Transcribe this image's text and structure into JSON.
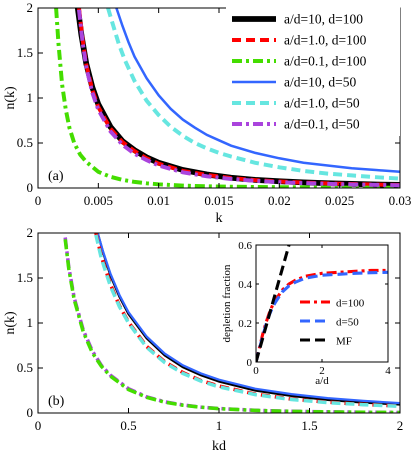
{
  "chart_data": [
    {
      "type": "line",
      "panel_label": "(a)",
      "xlabel": "k",
      "ylabel": "n(k)",
      "xlim": [
        0,
        0.03
      ],
      "ylim": [
        0,
        2
      ],
      "xticks": [
        "0",
        "0.005",
        "0.01",
        "0.015",
        "0.02",
        "0.025",
        "0.03"
      ],
      "xtick_values": [
        0,
        0.005,
        0.01,
        0.015,
        0.02,
        0.025,
        0.03
      ],
      "yticks": [
        "0",
        "0.5",
        "1",
        "1.5",
        "2"
      ],
      "ytick_values": [
        0,
        0.5,
        1,
        1.5,
        2
      ],
      "legend_position": "top-right",
      "series": [
        {
          "name": "a/d=10, d=100",
          "color": "#000000",
          "style": "solid-thick",
          "x": [
            0.0033,
            0.0036,
            0.004,
            0.0045,
            0.005,
            0.006,
            0.007,
            0.008,
            0.009,
            0.01,
            0.012,
            0.014,
            0.016,
            0.018,
            0.02,
            0.022,
            0.024,
            0.026,
            0.028,
            0.03
          ],
          "y": [
            2.0,
            1.7,
            1.38,
            1.12,
            0.93,
            0.68,
            0.52,
            0.42,
            0.34,
            0.28,
            0.2,
            0.15,
            0.115,
            0.09,
            0.075,
            0.062,
            0.052,
            0.045,
            0.039,
            0.034
          ]
        },
        {
          "name": "a/d=1.0, d=100",
          "color": "#ff0000",
          "style": "dashed",
          "x": [
            0.0034,
            0.0037,
            0.004,
            0.0045,
            0.005,
            0.006,
            0.007,
            0.008,
            0.009,
            0.01,
            0.012,
            0.014,
            0.016,
            0.018,
            0.02,
            0.022,
            0.024,
            0.026,
            0.028,
            0.03
          ],
          "y": [
            2.0,
            1.65,
            1.37,
            1.09,
            0.9,
            0.66,
            0.51,
            0.41,
            0.33,
            0.27,
            0.19,
            0.145,
            0.11,
            0.088,
            0.072,
            0.06,
            0.051,
            0.044,
            0.038,
            0.033
          ]
        },
        {
          "name": "a/d=0.1, d=100",
          "color": "#44dd00",
          "style": "dash-dot",
          "x": [
            0.0015,
            0.0017,
            0.002,
            0.0023,
            0.0026,
            0.003,
            0.0035,
            0.004,
            0.005,
            0.006,
            0.007,
            0.008,
            0.009,
            0.01,
            0.011,
            0.012,
            0.014,
            0.016,
            0.018,
            0.02,
            0.025,
            0.03
          ],
          "y": [
            2.0,
            1.6,
            1.15,
            0.87,
            0.67,
            0.5,
            0.37,
            0.29,
            0.18,
            0.125,
            0.09,
            0.068,
            0.052,
            0.041,
            0.033,
            0.027,
            0.019,
            0.014,
            0.011,
            0.009,
            0.005,
            0.003
          ]
        },
        {
          "name": "a/d=10, d=50",
          "color": "#3366ff",
          "style": "solid",
          "x": [
            0.0065,
            0.007,
            0.0075,
            0.008,
            0.009,
            0.01,
            0.011,
            0.012,
            0.013,
            0.014,
            0.015,
            0.016,
            0.018,
            0.02,
            0.022,
            0.024,
            0.026,
            0.028,
            0.03
          ],
          "y": [
            2.0,
            1.8,
            1.62,
            1.46,
            1.22,
            1.03,
            0.88,
            0.76,
            0.67,
            0.59,
            0.53,
            0.47,
            0.39,
            0.33,
            0.28,
            0.25,
            0.22,
            0.2,
            0.18
          ]
        },
        {
          "name": "a/d=1.0, d=50",
          "color": "#66e6e0",
          "style": "dashed",
          "x": [
            0.0058,
            0.0062,
            0.0067,
            0.0072,
            0.008,
            0.009,
            0.01,
            0.011,
            0.012,
            0.013,
            0.014,
            0.015,
            0.016,
            0.018,
            0.02,
            0.022,
            0.024,
            0.026,
            0.028,
            0.03
          ],
          "y": [
            2.0,
            1.82,
            1.6,
            1.42,
            1.19,
            0.97,
            0.81,
            0.68,
            0.58,
            0.5,
            0.44,
            0.39,
            0.35,
            0.28,
            0.23,
            0.19,
            0.16,
            0.14,
            0.12,
            0.105
          ]
        },
        {
          "name": "a/d=0.1, d=50",
          "color": "#aa44dd",
          "style": "dash-dot",
          "x": [
            0.0034,
            0.0037,
            0.004,
            0.0045,
            0.005,
            0.006,
            0.007,
            0.008,
            0.009,
            0.01,
            0.012,
            0.014,
            0.016,
            0.018,
            0.02,
            0.022,
            0.024,
            0.026,
            0.028,
            0.03
          ],
          "y": [
            1.98,
            1.62,
            1.34,
            1.06,
            0.87,
            0.63,
            0.48,
            0.38,
            0.31,
            0.25,
            0.175,
            0.13,
            0.1,
            0.08,
            0.065,
            0.054,
            0.046,
            0.039,
            0.034,
            0.03
          ]
        }
      ]
    },
    {
      "type": "line",
      "panel_label": "(b)",
      "xlabel": "kd",
      "ylabel": "n(k)",
      "xlim": [
        0,
        2
      ],
      "ylim": [
        0,
        2
      ],
      "xticks": [
        "0",
        "0.5",
        "1",
        "1.5",
        "2"
      ],
      "xtick_values": [
        0,
        0.5,
        1,
        1.5,
        2
      ],
      "yticks": [
        "0",
        "0.5",
        "1",
        "1.5",
        "2"
      ],
      "ytick_values": [
        0,
        0.5,
        1,
        1.5,
        2
      ],
      "series": [
        {
          "color": "#000000",
          "style": "solid",
          "x": [
            0.33,
            0.36,
            0.4,
            0.45,
            0.5,
            0.6,
            0.7,
            0.8,
            0.9,
            1.0,
            1.2,
            1.4,
            1.6,
            1.8,
            2.0
          ],
          "y": [
            2.0,
            1.78,
            1.53,
            1.29,
            1.1,
            0.83,
            0.64,
            0.51,
            0.42,
            0.35,
            0.25,
            0.19,
            0.145,
            0.115,
            0.094
          ]
        },
        {
          "color": "#3366ff",
          "style": "solid",
          "x": [
            0.33,
            0.36,
            0.4,
            0.45,
            0.5,
            0.6,
            0.7,
            0.8,
            0.9,
            1.0,
            1.2,
            1.4,
            1.6,
            1.8,
            2.0
          ],
          "y": [
            2.0,
            1.79,
            1.55,
            1.31,
            1.12,
            0.85,
            0.66,
            0.53,
            0.44,
            0.37,
            0.27,
            0.21,
            0.165,
            0.135,
            0.11
          ]
        },
        {
          "color": "#ff0000",
          "style": "dashed",
          "x": [
            0.32,
            0.35,
            0.4,
            0.45,
            0.5,
            0.6,
            0.7,
            0.8,
            0.9,
            1.0,
            1.2,
            1.4,
            1.6,
            1.8,
            2.0
          ],
          "y": [
            2.0,
            1.74,
            1.43,
            1.19,
            1.01,
            0.74,
            0.57,
            0.45,
            0.36,
            0.3,
            0.21,
            0.155,
            0.12,
            0.095,
            0.077
          ]
        },
        {
          "color": "#66e6e0",
          "style": "dashed",
          "x": [
            0.32,
            0.35,
            0.4,
            0.45,
            0.5,
            0.6,
            0.7,
            0.8,
            0.9,
            1.0,
            1.2,
            1.4,
            1.6,
            1.8,
            2.0
          ],
          "y": [
            1.98,
            1.72,
            1.41,
            1.18,
            1.0,
            0.73,
            0.56,
            0.44,
            0.355,
            0.29,
            0.205,
            0.15,
            0.115,
            0.092,
            0.075
          ]
        },
        {
          "color": "#aa44dd",
          "style": "dash-dot",
          "x": [
            0.15,
            0.17,
            0.2,
            0.25,
            0.3,
            0.35,
            0.4,
            0.5,
            0.6,
            0.7,
            0.8,
            0.9,
            1.0,
            1.2,
            1.4,
            1.6,
            1.8,
            2.0
          ],
          "y": [
            1.95,
            1.62,
            1.28,
            0.92,
            0.69,
            0.53,
            0.42,
            0.27,
            0.18,
            0.125,
            0.09,
            0.066,
            0.05,
            0.03,
            0.019,
            0.013,
            0.009,
            0.006
          ]
        },
        {
          "color": "#44dd00",
          "style": "dash-dot",
          "x": [
            0.15,
            0.17,
            0.2,
            0.25,
            0.3,
            0.35,
            0.4,
            0.5,
            0.6,
            0.7,
            0.8,
            0.9,
            1.0,
            1.2,
            1.4,
            1.6,
            1.8,
            2.0
          ],
          "y": [
            1.93,
            1.6,
            1.26,
            0.9,
            0.67,
            0.52,
            0.41,
            0.26,
            0.175,
            0.12,
            0.087,
            0.064,
            0.048,
            0.029,
            0.018,
            0.012,
            0.008,
            0.006
          ]
        }
      ]
    },
    {
      "type": "line",
      "panel_label": "",
      "xlabel": "a/d",
      "ylabel": "depletion fraction",
      "xlim": [
        0,
        4
      ],
      "ylim": [
        0,
        0.6
      ],
      "xticks": [
        "0",
        "2",
        "4"
      ],
      "xtick_values": [
        0,
        2,
        4
      ],
      "yticks": [
        "0",
        "0.2",
        "0.4",
        "0.6"
      ],
      "ytick_values": [
        0,
        0.2,
        0.4,
        0.6
      ],
      "legend_position": "bottom-right",
      "series": [
        {
          "name": "d=100",
          "color": "#ff0000",
          "style": "dash-dot",
          "x": [
            0.0,
            0.1,
            0.2,
            0.3,
            0.4,
            0.5,
            0.6,
            0.8,
            1.0,
            1.2,
            1.5,
            2.0,
            2.5,
            3.0,
            3.5,
            4.0
          ],
          "y": [
            0.0,
            0.07,
            0.14,
            0.2,
            0.25,
            0.29,
            0.32,
            0.37,
            0.4,
            0.42,
            0.44,
            0.455,
            0.46,
            0.465,
            0.47,
            0.47
          ]
        },
        {
          "name": "d=50",
          "color": "#3366ff",
          "style": "dashed",
          "x": [
            0.0,
            0.1,
            0.2,
            0.3,
            0.4,
            0.5,
            0.6,
            0.8,
            1.0,
            1.2,
            1.5,
            2.0,
            2.5,
            3.0,
            3.5,
            4.0
          ],
          "y": [
            0.0,
            0.065,
            0.13,
            0.19,
            0.24,
            0.28,
            0.31,
            0.36,
            0.39,
            0.41,
            0.43,
            0.445,
            0.45,
            0.455,
            0.458,
            0.46
          ]
        },
        {
          "name": "MF",
          "color": "#000000",
          "style": "dashed",
          "x": [
            0.0,
            0.2,
            0.4,
            0.6,
            0.8,
            1.0
          ],
          "y": [
            0.0,
            0.12,
            0.24,
            0.36,
            0.48,
            0.6
          ]
        }
      ]
    }
  ]
}
